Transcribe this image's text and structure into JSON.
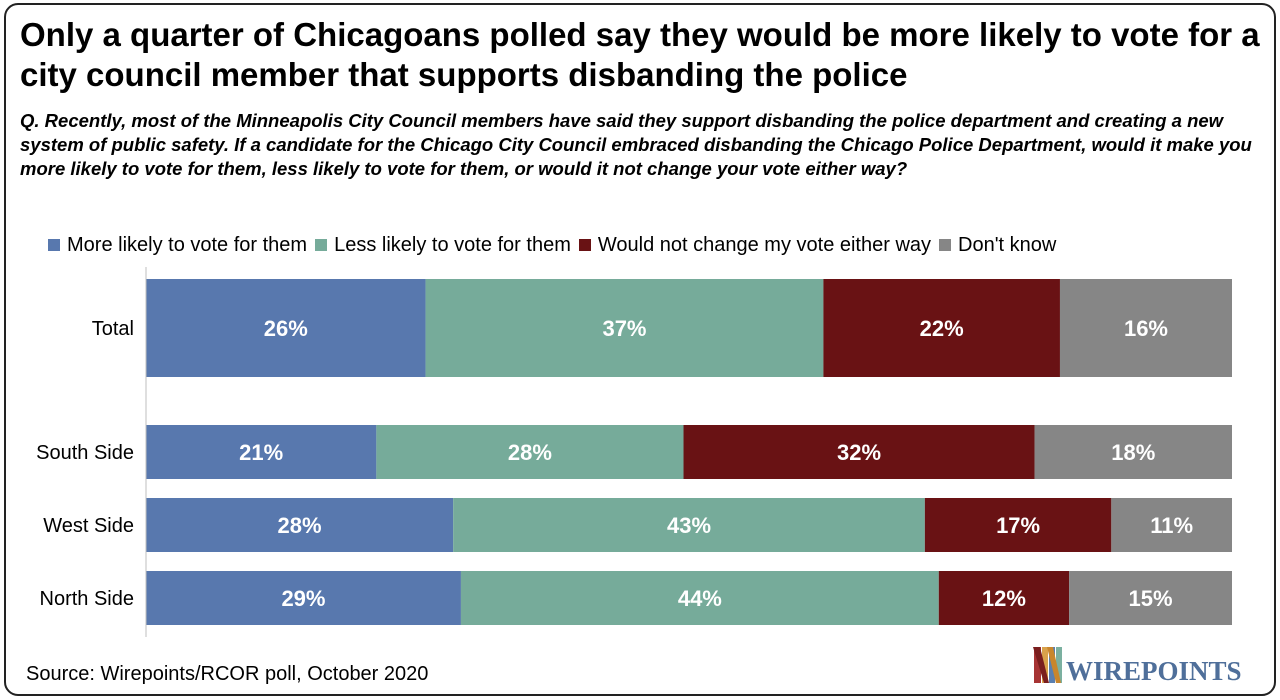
{
  "title": "Only a quarter of Chicagoans polled say they would be more likely to vote for a city council member that supports disbanding the police",
  "question": "Q. Recently, most of the Minneapolis City Council members have said they support disbanding the police department and creating a new system of public safety. If a candidate for the Chicago City Council embraced disbanding the Chicago Police Department, would it make you more likely to vote for them, less likely to vote for them, or would it not change your vote either way?",
  "source": "Source: Wirepoints/RCOR poll, October 2020",
  "logo": {
    "text": "WIREPOINTS",
    "icon": "w-logo-icon"
  },
  "colors": {
    "more": "#5878ae",
    "less": "#76ab9a",
    "nochange": "#691214",
    "dontknow": "#868686"
  },
  "chart_data": {
    "type": "bar",
    "orientation": "horizontal",
    "stacked": "100%",
    "categories": [
      "Total",
      "South Side",
      "West Side",
      "North Side"
    ],
    "series": [
      {
        "name": "More likely to vote for them",
        "values": [
          26,
          21,
          28,
          29
        ],
        "color": "#5878ae"
      },
      {
        "name": "Less likely to vote for them",
        "values": [
          37,
          28,
          43,
          44
        ],
        "color": "#76ab9a"
      },
      {
        "name": "Would not change my vote either way",
        "values": [
          22,
          32,
          17,
          12
        ],
        "color": "#691214"
      },
      {
        "name": "Don't know",
        "values": [
          16,
          18,
          11,
          15
        ],
        "color": "#868686"
      }
    ],
    "value_suffix": "%",
    "legend_position": "top",
    "grid": false,
    "xlabel": "",
    "ylabel": ""
  }
}
